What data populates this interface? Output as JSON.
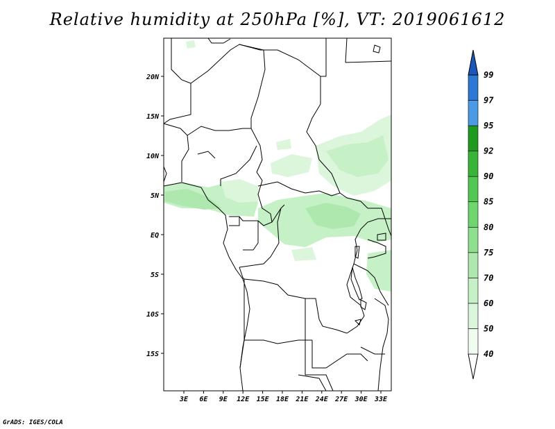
{
  "title": "Relative humidity at 250hPa [%], VT: 2019061612",
  "credit": "GrADS: IGES/COLA",
  "map": {
    "lat_labels": [
      "20N",
      "15N",
      "10N",
      "5N",
      "EQ",
      "5S",
      "10S",
      "15S"
    ],
    "lon_labels": [
      "3E",
      "6E",
      "9E",
      "12E",
      "15E",
      "18E",
      "21E",
      "24E",
      "27E",
      "30E",
      "33E"
    ]
  },
  "colorbar": {
    "levels": [
      "40",
      "50",
      "60",
      "70",
      "75",
      "80",
      "85",
      "90",
      "92",
      "95",
      "97",
      "99"
    ],
    "colors": [
      "#f0fcf0",
      "#dcf6dc",
      "#c6f0c6",
      "#aee8ae",
      "#8edf8e",
      "#6fd56f",
      "#52c852",
      "#38b538",
      "#1e9a1e",
      "#4a9ae6",
      "#2c78d6",
      "#1b57b8"
    ]
  }
}
